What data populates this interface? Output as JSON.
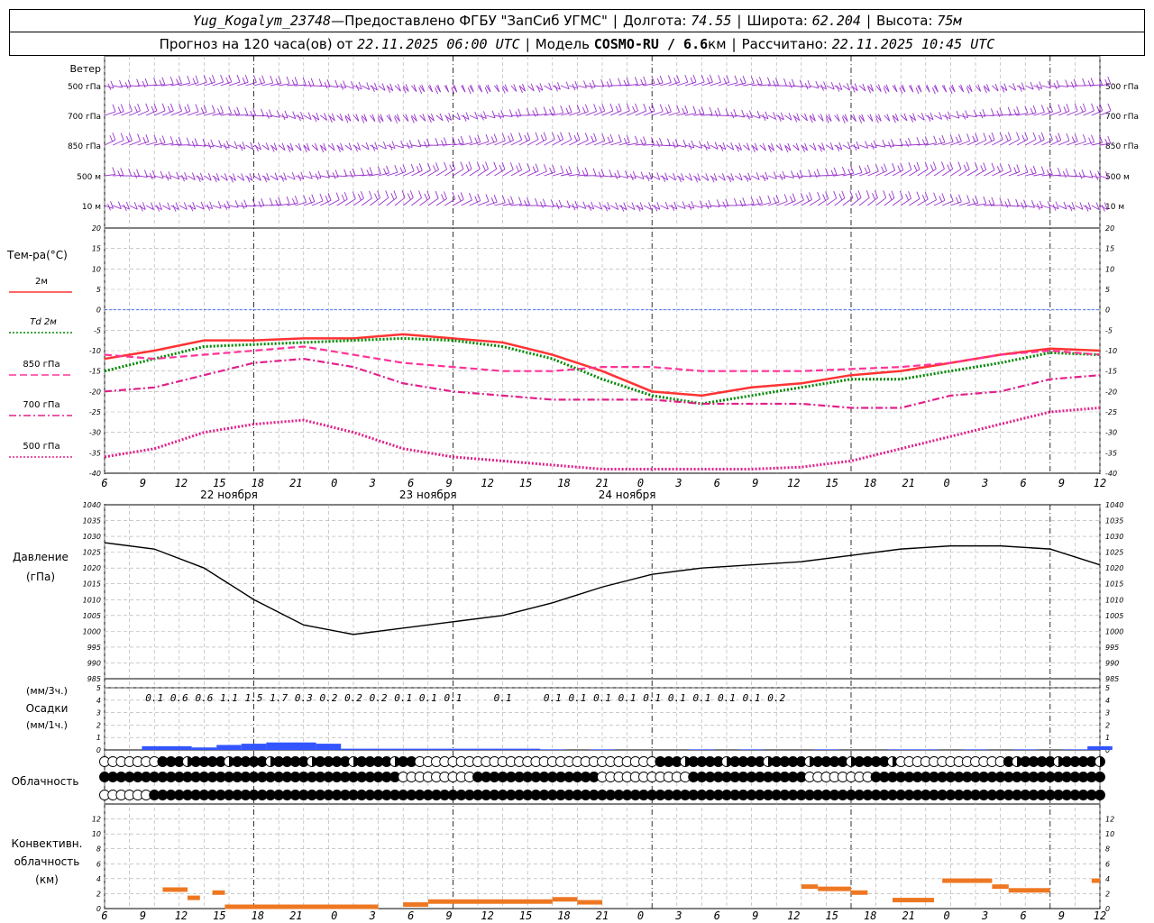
{
  "header": {
    "station": "Yug_Kogalym_23748",
    "dash": " — ",
    "provider": "Предоставлено ФГБУ \"ЗапСиб УГМС\"",
    "lon_label": "Долгота:",
    "lon": "74.55",
    "lat_label": "Широта:",
    "lat": "62.204",
    "alt_label": "Высота:",
    "alt": "75м",
    "forecast_label": "Прогноз на 120 часа(ов) от",
    "forecast_start": "22.11.2025 06:00 UTC",
    "model_label": "Модель",
    "model": "COSMO-RU / 6.6",
    "model_unit": "км",
    "calc_label": "Рассчитано:",
    "calc_time": "22.11.2025 10:45 UTC"
  },
  "time_axis": {
    "hour_labels": [
      "6",
      "9",
      "12",
      "15",
      "18",
      "21",
      "0",
      "3",
      "6",
      "9",
      "12",
      "15",
      "18",
      "21",
      "0",
      "3",
      "6",
      "9",
      "12",
      "15",
      "18",
      "21",
      "0",
      "3",
      "6",
      "9",
      "12"
    ],
    "day_labels": [
      "22 ноября",
      "23 ноября",
      "24 ноября"
    ]
  },
  "wind_panel": {
    "title": "Ветер",
    "levels": [
      "500 гПа",
      "700 гПа",
      "850 гПа",
      "500 м",
      "10 м"
    ],
    "barb_color": "#9933cc"
  },
  "chart_data": [
    {
      "type": "line",
      "id": "temperature",
      "ylabel": "Тем-ра(°C)",
      "ylim": [
        -40,
        20
      ],
      "yticks": [
        20,
        15,
        10,
        5,
        0,
        -5,
        -10,
        -15,
        -20,
        -25,
        -30,
        -35,
        -40
      ],
      "x_hours": [
        0,
        6,
        12,
        18,
        24,
        30,
        36,
        42,
        48,
        54,
        60,
        66,
        72,
        78,
        84,
        90,
        96,
        102,
        108,
        114,
        120
      ],
      "zero_line_color": "#3366ff",
      "series": [
        {
          "name": "2м",
          "color": "#ff3333",
          "style": "solid",
          "values": [
            -12,
            -10,
            -7.5,
            -7.5,
            -7,
            -7,
            -6,
            -7,
            -8,
            -11,
            -15,
            -20,
            -21,
            -19,
            -18,
            -16,
            -15,
            -13,
            -11,
            -9.5,
            -10
          ]
        },
        {
          "name": "Td 2м",
          "color": "#008800",
          "style": "dotted",
          "values": [
            -15,
            -12,
            -9,
            -8.5,
            -8,
            -7.5,
            -7,
            -7.5,
            -9,
            -12,
            -17,
            -21,
            -23,
            -21,
            -19,
            -17,
            -17,
            -15,
            -13,
            -10.5,
            -11
          ]
        },
        {
          "name": "850 гПа",
          "color": "#ff3399",
          "style": "dashed",
          "values": [
            -11,
            -12,
            -11,
            -10,
            -9,
            -11,
            -13,
            -14,
            -15,
            -15,
            -14,
            -14,
            -15,
            -15,
            -15,
            -14.5,
            -14,
            -13,
            -11,
            -10,
            -11
          ]
        },
        {
          "name": "700 гПа",
          "color": "#e0208a",
          "style": "dashdot",
          "values": [
            -20,
            -19,
            -16,
            -13,
            -12,
            -14,
            -18,
            -20,
            -21,
            -22,
            -22,
            -22,
            -23,
            -23,
            -23,
            -24,
            -24,
            -21,
            -20,
            -17,
            -16
          ]
        },
        {
          "name": "500 гПа",
          "color": "#e0208a",
          "style": "dotted",
          "values": [
            -36,
            -34,
            -30,
            -28,
            -27,
            -30,
            -34,
            -36,
            -37,
            -38,
            -39,
            -39,
            -39,
            -39,
            -38.5,
            -37,
            -34,
            -31,
            -28,
            -25,
            -24
          ]
        }
      ]
    },
    {
      "type": "line",
      "id": "pressure",
      "ylabel": "Давление",
      "ylabel2": "(гПа)",
      "ylim": [
        985,
        1040
      ],
      "yticks": [
        1040,
        1035,
        1030,
        1025,
        1020,
        1015,
        1010,
        1005,
        1000,
        995,
        990,
        985
      ],
      "x_hours": [
        0,
        6,
        12,
        18,
        24,
        30,
        36,
        42,
        48,
        54,
        60,
        66,
        72,
        78,
        84,
        90,
        96,
        102,
        108,
        114,
        120
      ],
      "series": [
        {
          "name": "Давление",
          "color": "#000000",
          "values": [
            1028,
            1026,
            1020,
            1010,
            1002,
            999,
            1001,
            1003,
            1005,
            1009,
            1014,
            1018,
            1020,
            1021,
            1022,
            1024,
            1026,
            1027,
            1027,
            1026,
            1021
          ]
        }
      ]
    },
    {
      "type": "bar",
      "id": "precip",
      "ylabel_top": "(мм/3ч.)",
      "ylabel": "Осадки",
      "ylabel2": "(мм/1ч.)",
      "ylim": [
        0,
        5
      ],
      "yticks": [
        5,
        4,
        3,
        2,
        1,
        0
      ],
      "bar_color": "#3355ff",
      "x_hours": [
        0,
        3,
        6,
        9,
        12,
        15,
        18,
        21,
        24,
        27,
        30,
        33,
        36,
        39,
        42,
        45,
        48,
        51,
        54,
        57,
        60,
        63,
        66,
        69,
        72,
        75,
        78,
        81,
        84,
        87,
        90,
        93,
        96,
        99,
        102,
        105,
        108,
        111,
        114,
        117,
        120
      ],
      "values": [
        0,
        0,
        0.3,
        0.3,
        0.2,
        0.4,
        0.5,
        0.6,
        0.6,
        0.5,
        0.1,
        0.1,
        0.1,
        0.1,
        0.1,
        0.1,
        0.1,
        0.1,
        0.05,
        0,
        0.05,
        0,
        0,
        0,
        0.05,
        0,
        0.05,
        0,
        0,
        0.05,
        0,
        0,
        0.05,
        0.05,
        0,
        0.05,
        0,
        0.05,
        0,
        0.05,
        0.3
      ],
      "sums_3h": [
        "0.1",
        "0.6",
        "0.6",
        "1.1",
        "1.5",
        "1.7",
        "0.3",
        "0.2",
        "0.2",
        "0.2",
        "0.1",
        "0.1",
        "0.1",
        "0.1",
        "0.1",
        "0.1",
        "0.1",
        "0.1",
        "0.1",
        "0.1",
        "0.1",
        "0.1",
        "0.1",
        "0.2"
      ],
      "sums_3h_hours": [
        6,
        9,
        12,
        15,
        18,
        21,
        24,
        27,
        30,
        33,
        36,
        39,
        42,
        48,
        54,
        57,
        60,
        63,
        66,
        69,
        72,
        75,
        78,
        81
      ]
    },
    {
      "type": "bar",
      "id": "convective",
      "ylabel": "Конвективн.",
      "ylabel2": "облачность",
      "ylabel3": "(км)",
      "ylim": [
        0,
        14
      ],
      "yticks": [
        12,
        10,
        8,
        6,
        4,
        2,
        0
      ],
      "bar_color": "#ee7722",
      "segments": [
        {
          "h0": 7,
          "h1": 10,
          "base": 0,
          "top": 2.6
        },
        {
          "h0": 10,
          "h1": 11.5,
          "base": 0,
          "top": 1.5
        },
        {
          "h0": 13,
          "h1": 14.5,
          "base": 0,
          "top": 2.2
        },
        {
          "h0": 14.5,
          "h1": 33,
          "base": 0,
          "top": 0.3
        },
        {
          "h0": 36,
          "h1": 39,
          "base": 0,
          "top": 0.6
        },
        {
          "h0": 39,
          "h1": 54,
          "base": 0,
          "top": 1.0
        },
        {
          "h0": 54,
          "h1": 57,
          "base": 0,
          "top": 1.3
        },
        {
          "h0": 57,
          "h1": 60,
          "base": 0,
          "top": 0.9
        },
        {
          "h0": 84,
          "h1": 86,
          "base": 0,
          "top": 3.0
        },
        {
          "h0": 86,
          "h1": 90,
          "base": 0,
          "top": 2.7
        },
        {
          "h0": 90,
          "h1": 92,
          "base": 0,
          "top": 2.2
        },
        {
          "h0": 95,
          "h1": 100,
          "base": 0,
          "top": 1.2
        },
        {
          "h0": 101,
          "h1": 107,
          "base": 0,
          "top": 3.8
        },
        {
          "h0": 107,
          "h1": 109,
          "base": 0,
          "top": 3.0
        },
        {
          "h0": 109,
          "h1": 114,
          "base": 0,
          "top": 2.5
        },
        {
          "h0": 119,
          "h1": 120,
          "base": 0,
          "top": 3.8
        }
      ]
    }
  ],
  "cloud_panel": {
    "title": "Облачность",
    "rows": 3
  }
}
